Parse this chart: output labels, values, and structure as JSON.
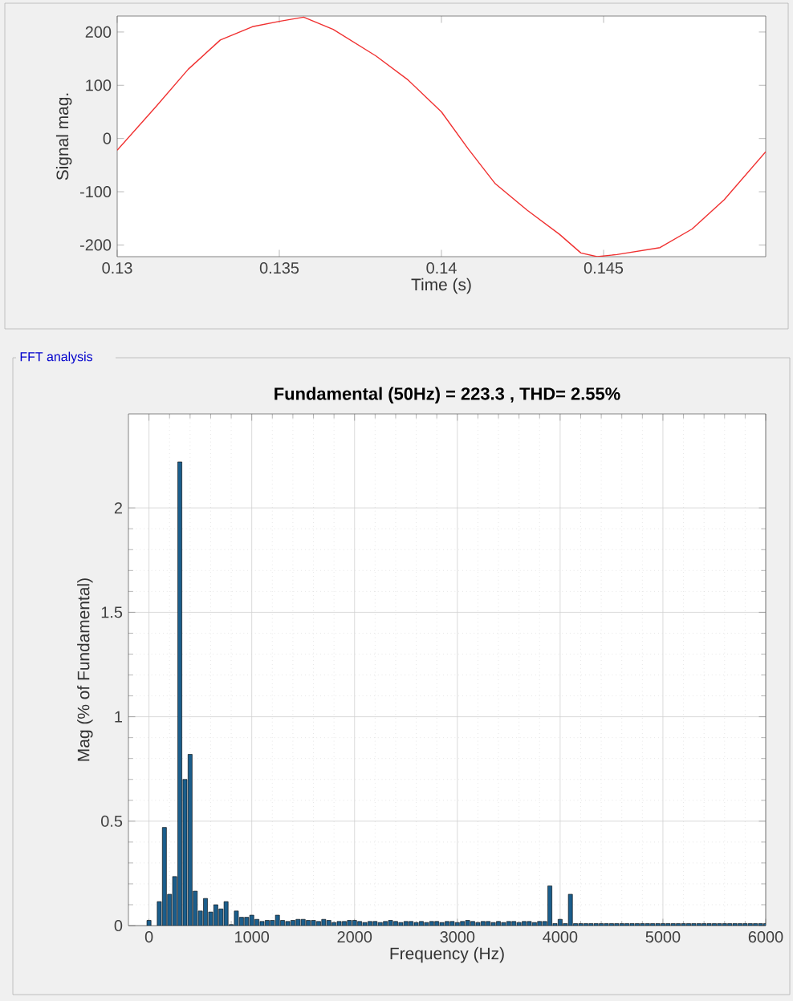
{
  "chart_data": [
    {
      "type": "line",
      "xlabel": "Time (s)",
      "ylabel": "Signal mag.",
      "color": "#f03030",
      "xlim": [
        0.13,
        0.15
      ],
      "ylim": [
        -222,
        230
      ],
      "xticks": [
        0.13,
        0.135,
        0.14,
        0.145
      ],
      "yticks": [
        -200,
        -100,
        0,
        100,
        200
      ],
      "x": [
        0.13,
        0.1312,
        0.13219,
        0.13318,
        0.13417,
        0.135,
        0.13575,
        0.13666,
        0.13798,
        0.13897,
        0.14,
        0.14083,
        0.14166,
        0.14265,
        0.14364,
        0.1443,
        0.1448,
        0.14541,
        0.14674,
        0.14773,
        0.14872,
        0.15
      ],
      "values": [
        -22,
        60,
        130,
        185,
        210,
        220,
        228,
        205,
        155,
        110,
        50,
        -20,
        -85,
        -135,
        -180,
        -215,
        -222,
        -218,
        -205,
        -170,
        -115,
        -25
      ]
    },
    {
      "type": "bar",
      "title": "Fundamental (50Hz) = 223.3 , THD= 2.55%",
      "xlabel": "Frequency (Hz)",
      "ylabel": "Mag (% of Fundamental)",
      "annotations": [
        "FFT analysis"
      ],
      "color": "#1b5e8c",
      "grid": true,
      "xlim": [
        -200,
        6000
      ],
      "ylim": [
        0,
        2.45
      ],
      "xticks": [
        0,
        1000,
        2000,
        3000,
        4000,
        5000,
        6000
      ],
      "yticks": [
        0,
        0.5,
        1,
        1.5,
        2
      ],
      "x": [
        0,
        50,
        100,
        150,
        200,
        250,
        300,
        350,
        400,
        450,
        500,
        550,
        600,
        650,
        700,
        750,
        800,
        850,
        900,
        950,
        1000,
        1050,
        1100,
        1150,
        1200,
        1250,
        1300,
        1350,
        1400,
        1450,
        1500,
        1550,
        1600,
        1650,
        1700,
        1750,
        1800,
        1850,
        1900,
        1950,
        2000,
        2050,
        2100,
        2150,
        2200,
        2250,
        2300,
        2350,
        2400,
        2450,
        2500,
        2550,
        2600,
        2650,
        2700,
        2750,
        2800,
        2850,
        2900,
        2950,
        3000,
        3050,
        3100,
        3150,
        3200,
        3250,
        3300,
        3350,
        3400,
        3450,
        3500,
        3550,
        3600,
        3650,
        3700,
        3750,
        3800,
        3850,
        3900,
        3950,
        4000,
        4050,
        4100,
        4150,
        4200,
        4250,
        4300,
        4350,
        4400,
        4450,
        4500,
        4550,
        4600,
        4650,
        4700,
        4750,
        4800,
        4850,
        4900,
        4950,
        5000,
        5050,
        5100,
        5150,
        5200,
        5250,
        5300,
        5350,
        5400,
        5450,
        5500,
        5550,
        5600,
        5650,
        5700,
        5750,
        5800,
        5850,
        5900,
        5950,
        6000
      ],
      "values": [
        0.025,
        null,
        0.115,
        0.47,
        0.15,
        0.235,
        2.22,
        0.7,
        0.82,
        0.165,
        0.07,
        0.13,
        0.065,
        0.1,
        0.08,
        0.115,
        0.005,
        0.07,
        0.04,
        0.04,
        0.05,
        0.03,
        0.02,
        0.025,
        0.025,
        0.05,
        0.025,
        0.02,
        0.025,
        0.03,
        0.03,
        0.025,
        0.025,
        0.02,
        0.03,
        0.025,
        0.015,
        0.02,
        0.02,
        0.025,
        0.025,
        0.02,
        0.015,
        0.02,
        0.02,
        0.015,
        0.02,
        0.025,
        0.02,
        0.015,
        0.02,
        0.02,
        0.015,
        0.02,
        0.015,
        0.02,
        0.02,
        0.015,
        0.02,
        0.02,
        0.015,
        0.02,
        0.025,
        0.02,
        0.015,
        0.02,
        0.02,
        0.015,
        0.02,
        0.015,
        0.02,
        0.02,
        0.015,
        0.02,
        0.02,
        0.015,
        0.02,
        0.02,
        0.19,
        0.01,
        0.03,
        0.01,
        0.15,
        0.01,
        0.01,
        0.01,
        0.01,
        0.01,
        0.01,
        0.01,
        0.01,
        0.01,
        0.01,
        0.01,
        0.01,
        0.01,
        0.01,
        0.01,
        0.01,
        0.01,
        0.01,
        0.01,
        0.01,
        0.01,
        0.01,
        0.01,
        0.01,
        0.01,
        0.01,
        0.01,
        0.01,
        0.01,
        0.01,
        0.01,
        0.01,
        0.01,
        0.01,
        0.01,
        0.01,
        0.01,
        0.01
      ]
    }
  ]
}
